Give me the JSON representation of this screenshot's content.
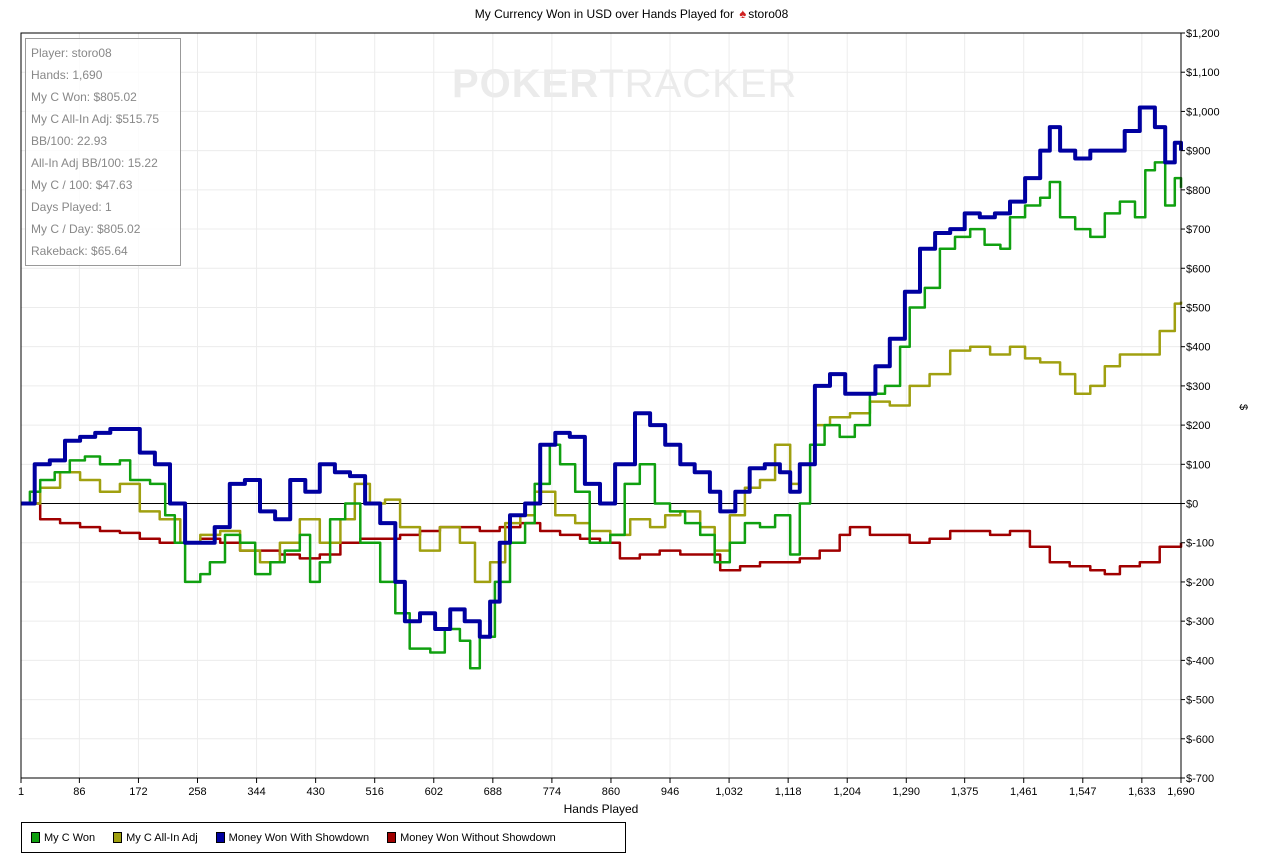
{
  "chart_data": {
    "type": "line",
    "title_prefix": "My Currency Won in USD over Hands Played for",
    "title_player": "storo08",
    "xlabel": "Hands Played",
    "ylabel": "$",
    "xlim": [
      1,
      1690
    ],
    "ylim": [
      -700,
      1200
    ],
    "x_ticks": [
      "1",
      "86",
      "172",
      "258",
      "344",
      "430",
      "516",
      "602",
      "688",
      "774",
      "860",
      "946",
      "1,032",
      "1,118",
      "1,204",
      "1,290",
      "1,375",
      "1,461",
      "1,547",
      "1,633",
      "1,690"
    ],
    "x_tick_values": [
      1,
      86,
      172,
      258,
      344,
      430,
      516,
      602,
      688,
      774,
      860,
      946,
      1032,
      1118,
      1204,
      1290,
      1375,
      1461,
      1547,
      1633,
      1690
    ],
    "y_ticks": [
      1200,
      1100,
      1000,
      900,
      800,
      700,
      600,
      500,
      400,
      300,
      200,
      100,
      0,
      -100,
      -200,
      -300,
      -400,
      -500,
      -600,
      -700
    ],
    "y_tick_labels": [
      "$1,200",
      "$1,100",
      "$1,000",
      "$900",
      "$800",
      "$700",
      "$600",
      "$500",
      "$400",
      "$300",
      "$200",
      "$100",
      "$0",
      "$-100",
      "$-200",
      "$-300",
      "$-400",
      "$-500",
      "$-600",
      "$-700"
    ],
    "grid": true,
    "legend_position": "bottom-left",
    "series": [
      {
        "name": "My C Won",
        "color": "#10a010",
        "points": [
          [
            1,
            0
          ],
          [
            14,
            30
          ],
          [
            29,
            60
          ],
          [
            50,
            80
          ],
          [
            72,
            110
          ],
          [
            94,
            120
          ],
          [
            116,
            100
          ],
          [
            145,
            110
          ],
          [
            160,
            60
          ],
          [
            189,
            50
          ],
          [
            211,
            -30
          ],
          [
            225,
            -100
          ],
          [
            240,
            -200
          ],
          [
            262,
            -180
          ],
          [
            276,
            -150
          ],
          [
            298,
            -80
          ],
          [
            320,
            -100
          ],
          [
            342,
            -180
          ],
          [
            364,
            -150
          ],
          [
            385,
            -120
          ],
          [
            407,
            -80
          ],
          [
            422,
            -200
          ],
          [
            436,
            -150
          ],
          [
            451,
            -40
          ],
          [
            473,
            0
          ],
          [
            495,
            -100
          ],
          [
            524,
            -200
          ],
          [
            546,
            -280
          ],
          [
            567,
            -370
          ],
          [
            597,
            -380
          ],
          [
            618,
            -320
          ],
          [
            640,
            -350
          ],
          [
            655,
            -420
          ],
          [
            669,
            -340
          ],
          [
            691,
            -200
          ],
          [
            713,
            -100
          ],
          [
            735,
            -50
          ],
          [
            749,
            50
          ],
          [
            771,
            150
          ],
          [
            786,
            100
          ],
          [
            808,
            30
          ],
          [
            829,
            -100
          ],
          [
            859,
            -80
          ],
          [
            880,
            50
          ],
          [
            902,
            100
          ],
          [
            924,
            0
          ],
          [
            946,
            -20
          ],
          [
            968,
            -50
          ],
          [
            990,
            -80
          ],
          [
            1011,
            -150
          ],
          [
            1033,
            -100
          ],
          [
            1055,
            -50
          ],
          [
            1077,
            -60
          ],
          [
            1099,
            -30
          ],
          [
            1121,
            -130
          ],
          [
            1135,
            0
          ],
          [
            1150,
            150
          ],
          [
            1171,
            200
          ],
          [
            1193,
            170
          ],
          [
            1215,
            200
          ],
          [
            1237,
            280
          ],
          [
            1259,
            300
          ],
          [
            1281,
            400
          ],
          [
            1295,
            500
          ],
          [
            1317,
            550
          ],
          [
            1339,
            650
          ],
          [
            1361,
            680
          ],
          [
            1383,
            700
          ],
          [
            1404,
            660
          ],
          [
            1427,
            650
          ],
          [
            1441,
            730
          ],
          [
            1463,
            760
          ],
          [
            1485,
            780
          ],
          [
            1499,
            820
          ],
          [
            1514,
            730
          ],
          [
            1536,
            700
          ],
          [
            1558,
            680
          ],
          [
            1579,
            740
          ],
          [
            1601,
            770
          ],
          [
            1623,
            730
          ],
          [
            1638,
            850
          ],
          [
            1652,
            870
          ],
          [
            1667,
            760
          ],
          [
            1681,
            830
          ],
          [
            1690,
            805
          ]
        ]
      },
      {
        "name": "My C All-In Adj",
        "color": "#a0a010",
        "points": [
          [
            1,
            0
          ],
          [
            29,
            40
          ],
          [
            58,
            80
          ],
          [
            87,
            60
          ],
          [
            116,
            30
          ],
          [
            145,
            50
          ],
          [
            174,
            -20
          ],
          [
            203,
            -40
          ],
          [
            233,
            -100
          ],
          [
            262,
            -80
          ],
          [
            291,
            -70
          ],
          [
            320,
            -120
          ],
          [
            349,
            -150
          ],
          [
            378,
            -100
          ],
          [
            407,
            -40
          ],
          [
            436,
            -100
          ],
          [
            466,
            -40
          ],
          [
            487,
            50
          ],
          [
            509,
            0
          ],
          [
            531,
            10
          ],
          [
            553,
            -60
          ],
          [
            582,
            -120
          ],
          [
            611,
            -60
          ],
          [
            640,
            -100
          ],
          [
            662,
            -200
          ],
          [
            684,
            -150
          ],
          [
            706,
            -50
          ],
          [
            728,
            -30
          ],
          [
            749,
            30
          ],
          [
            779,
            -30
          ],
          [
            808,
            -50
          ],
          [
            829,
            -70
          ],
          [
            859,
            -80
          ],
          [
            888,
            -40
          ],
          [
            917,
            -60
          ],
          [
            939,
            -30
          ],
          [
            961,
            -20
          ],
          [
            990,
            -60
          ],
          [
            1011,
            -120
          ],
          [
            1033,
            -30
          ],
          [
            1055,
            40
          ],
          [
            1077,
            60
          ],
          [
            1099,
            150
          ],
          [
            1121,
            50
          ],
          [
            1135,
            100
          ],
          [
            1157,
            200
          ],
          [
            1179,
            220
          ],
          [
            1208,
            230
          ],
          [
            1237,
            260
          ],
          [
            1266,
            250
          ],
          [
            1295,
            300
          ],
          [
            1324,
            330
          ],
          [
            1354,
            390
          ],
          [
            1383,
            400
          ],
          [
            1412,
            380
          ],
          [
            1441,
            400
          ],
          [
            1463,
            370
          ],
          [
            1485,
            360
          ],
          [
            1514,
            330
          ],
          [
            1536,
            280
          ],
          [
            1558,
            300
          ],
          [
            1579,
            350
          ],
          [
            1601,
            380
          ],
          [
            1630,
            380
          ],
          [
            1659,
            440
          ],
          [
            1681,
            510
          ],
          [
            1690,
            515
          ]
        ]
      },
      {
        "name": "Money Won With Showdown",
        "color": "#0000a0",
        "points": [
          [
            1,
            0
          ],
          [
            21,
            100
          ],
          [
            43,
            110
          ],
          [
            65,
            160
          ],
          [
            87,
            170
          ],
          [
            109,
            180
          ],
          [
            131,
            190
          ],
          [
            152,
            190
          ],
          [
            174,
            130
          ],
          [
            196,
            100
          ],
          [
            218,
            0
          ],
          [
            240,
            -100
          ],
          [
            262,
            -100
          ],
          [
            283,
            -60
          ],
          [
            305,
            50
          ],
          [
            327,
            60
          ],
          [
            349,
            -20
          ],
          [
            371,
            -40
          ],
          [
            393,
            60
          ],
          [
            415,
            30
          ],
          [
            436,
            100
          ],
          [
            458,
            80
          ],
          [
            480,
            70
          ],
          [
            502,
            0
          ],
          [
            524,
            -50
          ],
          [
            546,
            -200
          ],
          [
            560,
            -300
          ],
          [
            582,
            -280
          ],
          [
            604,
            -320
          ],
          [
            626,
            -270
          ],
          [
            647,
            -300
          ],
          [
            669,
            -340
          ],
          [
            684,
            -250
          ],
          [
            698,
            -100
          ],
          [
            713,
            -30
          ],
          [
            735,
            0
          ],
          [
            757,
            150
          ],
          [
            779,
            180
          ],
          [
            800,
            170
          ],
          [
            822,
            50
          ],
          [
            844,
            0
          ],
          [
            866,
            100
          ],
          [
            895,
            230
          ],
          [
            917,
            200
          ],
          [
            939,
            150
          ],
          [
            961,
            100
          ],
          [
            982,
            80
          ],
          [
            1004,
            30
          ],
          [
            1019,
            -20
          ],
          [
            1041,
            30
          ],
          [
            1062,
            90
          ],
          [
            1084,
            100
          ],
          [
            1106,
            80
          ],
          [
            1121,
            30
          ],
          [
            1135,
            100
          ],
          [
            1157,
            300
          ],
          [
            1179,
            330
          ],
          [
            1201,
            280
          ],
          [
            1223,
            280
          ],
          [
            1245,
            350
          ],
          [
            1266,
            420
          ],
          [
            1288,
            540
          ],
          [
            1310,
            650
          ],
          [
            1332,
            690
          ],
          [
            1354,
            700
          ],
          [
            1375,
            740
          ],
          [
            1397,
            730
          ],
          [
            1419,
            740
          ],
          [
            1441,
            770
          ],
          [
            1463,
            830
          ],
          [
            1485,
            900
          ],
          [
            1499,
            960
          ],
          [
            1514,
            900
          ],
          [
            1536,
            880
          ],
          [
            1558,
            900
          ],
          [
            1587,
            900
          ],
          [
            1608,
            950
          ],
          [
            1630,
            1010
          ],
          [
            1652,
            960
          ],
          [
            1667,
            870
          ],
          [
            1681,
            920
          ],
          [
            1690,
            900
          ]
        ]
      },
      {
        "name": "Money Won Without Showdown",
        "color": "#a00000",
        "points": [
          [
            1,
            0
          ],
          [
            29,
            -40
          ],
          [
            58,
            -50
          ],
          [
            87,
            -60
          ],
          [
            116,
            -70
          ],
          [
            145,
            -75
          ],
          [
            174,
            -90
          ],
          [
            203,
            -100
          ],
          [
            233,
            -100
          ],
          [
            262,
            -90
          ],
          [
            291,
            -100
          ],
          [
            320,
            -120
          ],
          [
            349,
            -120
          ],
          [
            378,
            -130
          ],
          [
            407,
            -140
          ],
          [
            436,
            -130
          ],
          [
            466,
            -100
          ],
          [
            495,
            -90
          ],
          [
            524,
            -90
          ],
          [
            553,
            -80
          ],
          [
            582,
            -70
          ],
          [
            611,
            -60
          ],
          [
            640,
            -60
          ],
          [
            669,
            -70
          ],
          [
            698,
            -60
          ],
          [
            728,
            -50
          ],
          [
            757,
            -70
          ],
          [
            786,
            -80
          ],
          [
            815,
            -90
          ],
          [
            844,
            -100
          ],
          [
            873,
            -140
          ],
          [
            902,
            -130
          ],
          [
            931,
            -120
          ],
          [
            961,
            -130
          ],
          [
            990,
            -130
          ],
          [
            1019,
            -170
          ],
          [
            1048,
            -160
          ],
          [
            1077,
            -150
          ],
          [
            1106,
            -150
          ],
          [
            1135,
            -140
          ],
          [
            1164,
            -120
          ],
          [
            1193,
            -80
          ],
          [
            1208,
            -60
          ],
          [
            1237,
            -80
          ],
          [
            1266,
            -80
          ],
          [
            1295,
            -100
          ],
          [
            1324,
            -90
          ],
          [
            1354,
            -70
          ],
          [
            1383,
            -70
          ],
          [
            1412,
            -80
          ],
          [
            1441,
            -70
          ],
          [
            1470,
            -110
          ],
          [
            1499,
            -150
          ],
          [
            1528,
            -160
          ],
          [
            1558,
            -170
          ],
          [
            1579,
            -180
          ],
          [
            1601,
            -160
          ],
          [
            1630,
            -150
          ],
          [
            1659,
            -110
          ],
          [
            1690,
            -100
          ]
        ]
      }
    ]
  },
  "stats": [
    "Player: storo08",
    "Hands: 1,690",
    "My C Won: $805.02",
    "My C All-In Adj: $515.75",
    "BB/100: 22.93",
    "All-In Adj BB/100: 15.22",
    "My C / 100: $47.63",
    "Days Played: 1",
    "My C / Day: $805.02",
    "Rakeback: $65.64"
  ],
  "watermark": {
    "bold": "POKER",
    "light": "TRACKER"
  }
}
